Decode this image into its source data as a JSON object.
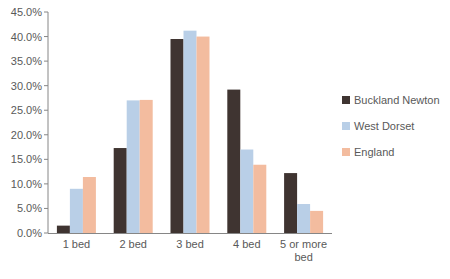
{
  "chart_data": {
    "type": "bar",
    "categories": [
      "1 bed",
      "2 bed",
      "3 bed",
      "4 bed",
      "5 or more bed"
    ],
    "series": [
      {
        "name": "Buckland Newton",
        "color": "#3f3431",
        "values": [
          1.5,
          17.3,
          39.5,
          29.2,
          12.2
        ]
      },
      {
        "name": "West Dorset",
        "color": "#b9cfe7",
        "values": [
          9.0,
          27.0,
          41.2,
          17.0,
          5.9
        ]
      },
      {
        "name": "England",
        "color": "#f3bc9f",
        "values": [
          11.4,
          27.1,
          40.0,
          13.9,
          4.5
        ]
      }
    ],
    "ylim": [
      0,
      45
    ],
    "yticks": [
      {
        "value": 0,
        "label": "0.0%"
      },
      {
        "value": 5,
        "label": "5.0%"
      },
      {
        "value": 10,
        "label": "10.0%"
      },
      {
        "value": 15,
        "label": "15.0%"
      },
      {
        "value": 20,
        "label": "20.0%"
      },
      {
        "value": 25,
        "label": "25.0%"
      },
      {
        "value": 30,
        "label": "30.0%"
      },
      {
        "value": 35,
        "label": "35.0%"
      },
      {
        "value": 40,
        "label": "40.0%"
      },
      {
        "value": 45,
        "label": "45.0%"
      }
    ],
    "grid": false,
    "legend": "right"
  }
}
